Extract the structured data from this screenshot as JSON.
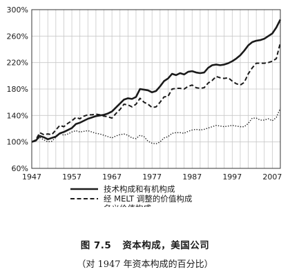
{
  "chart_data": {
    "type": "line",
    "title": "资本构成，美国公司",
    "figure_number": "图 7.5",
    "subtitle": "（对 1947 年资本构成的百分比）",
    "xlabel": "",
    "ylabel": "",
    "xlim": [
      1947,
      2009
    ],
    "ylim": [
      60,
      300
    ],
    "x_ticks": [
      1947,
      1957,
      1967,
      1977,
      1987,
      1997,
      2007
    ],
    "y_ticks": [
      60,
      100,
      140,
      180,
      220,
      260,
      300
    ],
    "y_tick_suffix": "%",
    "grid": true,
    "legend_position": "bottom",
    "series": [
      {
        "name": "技术构成和有机构成",
        "style": "solid",
        "points": [
          [
            1947,
            100
          ],
          [
            1948,
            102
          ],
          [
            1949,
            109
          ],
          [
            1950,
            107
          ],
          [
            1951,
            104
          ],
          [
            1952,
            106
          ],
          [
            1953,
            108
          ],
          [
            1954,
            113
          ],
          [
            1955,
            115
          ],
          [
            1956,
            118
          ],
          [
            1957,
            121
          ],
          [
            1958,
            127
          ],
          [
            1959,
            129
          ],
          [
            1960,
            132
          ],
          [
            1961,
            135
          ],
          [
            1962,
            137
          ],
          [
            1963,
            139
          ],
          [
            1964,
            140
          ],
          [
            1965,
            141
          ],
          [
            1966,
            143
          ],
          [
            1967,
            146
          ],
          [
            1968,
            152
          ],
          [
            1969,
            158
          ],
          [
            1970,
            164
          ],
          [
            1971,
            166
          ],
          [
            1972,
            165
          ],
          [
            1973,
            168
          ],
          [
            1974,
            180
          ],
          [
            1975,
            179
          ],
          [
            1976,
            178
          ],
          [
            1977,
            175
          ],
          [
            1978,
            177
          ],
          [
            1979,
            184
          ],
          [
            1980,
            192
          ],
          [
            1981,
            196
          ],
          [
            1982,
            203
          ],
          [
            1983,
            201
          ],
          [
            1984,
            204
          ],
          [
            1985,
            202
          ],
          [
            1986,
            206
          ],
          [
            1987,
            207
          ],
          [
            1988,
            205
          ],
          [
            1989,
            204
          ],
          [
            1990,
            205
          ],
          [
            1991,
            212
          ],
          [
            1992,
            216
          ],
          [
            1993,
            217
          ],
          [
            1994,
            216
          ],
          [
            1995,
            217
          ],
          [
            1996,
            219
          ],
          [
            1997,
            222
          ],
          [
            1998,
            226
          ],
          [
            1999,
            231
          ],
          [
            2000,
            238
          ],
          [
            2001,
            246
          ],
          [
            2002,
            251
          ],
          [
            2003,
            253
          ],
          [
            2004,
            254
          ],
          [
            2005,
            256
          ],
          [
            2006,
            260
          ],
          [
            2007,
            264
          ],
          [
            2008,
            273
          ],
          [
            2009,
            285
          ]
        ]
      },
      {
        "name": "经 MELT 调整的价值构成",
        "style": "dashed",
        "points": [
          [
            1947,
            100
          ],
          [
            1948,
            103
          ],
          [
            1949,
            114
          ],
          [
            1950,
            111
          ],
          [
            1951,
            112
          ],
          [
            1952,
            111
          ],
          [
            1953,
            118
          ],
          [
            1954,
            125
          ],
          [
            1955,
            123
          ],
          [
            1956,
            128
          ],
          [
            1957,
            132
          ],
          [
            1958,
            137
          ],
          [
            1959,
            135
          ],
          [
            1960,
            139
          ],
          [
            1961,
            141
          ],
          [
            1962,
            141
          ],
          [
            1963,
            142
          ],
          [
            1964,
            141
          ],
          [
            1965,
            139
          ],
          [
            1966,
            138
          ],
          [
            1967,
            136
          ],
          [
            1968,
            143
          ],
          [
            1969,
            149
          ],
          [
            1970,
            157
          ],
          [
            1971,
            156
          ],
          [
            1972,
            153
          ],
          [
            1973,
            157
          ],
          [
            1974,
            166
          ],
          [
            1975,
            160
          ],
          [
            1976,
            157
          ],
          [
            1977,
            152
          ],
          [
            1978,
            153
          ],
          [
            1979,
            160
          ],
          [
            1980,
            168
          ],
          [
            1981,
            169
          ],
          [
            1982,
            180
          ],
          [
            1983,
            181
          ],
          [
            1984,
            181
          ],
          [
            1985,
            180
          ],
          [
            1986,
            184
          ],
          [
            1987,
            186
          ],
          [
            1988,
            182
          ],
          [
            1989,
            181
          ],
          [
            1990,
            182
          ],
          [
            1991,
            189
          ],
          [
            1992,
            193
          ],
          [
            1993,
            199
          ],
          [
            1994,
            197
          ],
          [
            1995,
            196
          ],
          [
            1996,
            197
          ],
          [
            1997,
            192
          ],
          [
            1998,
            188
          ],
          [
            1999,
            186
          ],
          [
            2000,
            190
          ],
          [
            2001,
            203
          ],
          [
            2002,
            212
          ],
          [
            2003,
            219
          ],
          [
            2004,
            219
          ],
          [
            2005,
            219
          ],
          [
            2006,
            220
          ],
          [
            2007,
            222
          ],
          [
            2008,
            226
          ],
          [
            2009,
            250
          ]
        ]
      },
      {
        "name": "名义价值构成",
        "style": "dotted",
        "points": [
          [
            1947,
            100
          ],
          [
            1948,
            101
          ],
          [
            1949,
            107
          ],
          [
            1950,
            103
          ],
          [
            1951,
            100
          ],
          [
            1952,
            101
          ],
          [
            1953,
            107
          ],
          [
            1954,
            113
          ],
          [
            1955,
            110
          ],
          [
            1956,
            112
          ],
          [
            1957,
            115
          ],
          [
            1958,
            117
          ],
          [
            1959,
            115
          ],
          [
            1960,
            116
          ],
          [
            1961,
            117
          ],
          [
            1962,
            115
          ],
          [
            1963,
            113
          ],
          [
            1964,
            112
          ],
          [
            1965,
            110
          ],
          [
            1966,
            108
          ],
          [
            1967,
            106
          ],
          [
            1968,
            109
          ],
          [
            1969,
            111
          ],
          [
            1970,
            112
          ],
          [
            1971,
            110
          ],
          [
            1972,
            106
          ],
          [
            1973,
            105
          ],
          [
            1974,
            110
          ],
          [
            1975,
            108
          ],
          [
            1976,
            101
          ],
          [
            1977,
            98
          ],
          [
            1978,
            97
          ],
          [
            1979,
            100
          ],
          [
            1980,
            106
          ],
          [
            1981,
            108
          ],
          [
            1982,
            113
          ],
          [
            1983,
            114
          ],
          [
            1984,
            114
          ],
          [
            1985,
            113
          ],
          [
            1986,
            116
          ],
          [
            1987,
            118
          ],
          [
            1988,
            119
          ],
          [
            1989,
            118
          ],
          [
            1990,
            119
          ],
          [
            1991,
            121
          ],
          [
            1992,
            123
          ],
          [
            1993,
            125
          ],
          [
            1994,
            124
          ],
          [
            1995,
            123
          ],
          [
            1996,
            124
          ],
          [
            1997,
            125
          ],
          [
            1998,
            124
          ],
          [
            1999,
            123
          ],
          [
            2000,
            123
          ],
          [
            2001,
            128
          ],
          [
            2002,
            136
          ],
          [
            2003,
            136
          ],
          [
            2004,
            133
          ],
          [
            2005,
            133
          ],
          [
            2006,
            135
          ],
          [
            2007,
            132
          ],
          [
            2008,
            137
          ],
          [
            2009,
            151
          ]
        ]
      }
    ]
  },
  "colors": {
    "ink": "#1a1a1a",
    "grid": "#c8c8c8",
    "frame": "#333333",
    "background": "#ffffff"
  }
}
